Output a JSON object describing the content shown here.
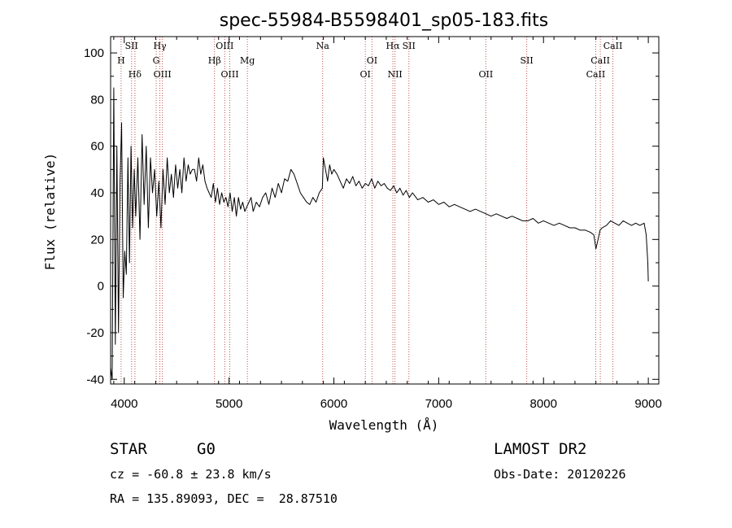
{
  "chart_data": {
    "type": "line",
    "title": "spec-55984-B5598401_sp05-183.fits",
    "xlabel": "Wavelength (Å)",
    "ylabel": "Flux (relative)",
    "xlim": [
      3870,
      9100
    ],
    "ylim": [
      -42,
      107
    ],
    "xticks": [
      4000,
      5000,
      6000,
      7000,
      8000,
      9000
    ],
    "yticks": [
      -40,
      -20,
      0,
      20,
      40,
      60,
      80,
      100
    ],
    "grid": false,
    "line_color": "#000000",
    "marker_color": "#c0504d",
    "spectrum": {
      "x": [
        3870,
        3885,
        3900,
        3915,
        3930,
        3945,
        3960,
        3975,
        3990,
        4005,
        4020,
        4035,
        4050,
        4065,
        4080,
        4095,
        4110,
        4130,
        4150,
        4170,
        4190,
        4210,
        4230,
        4250,
        4270,
        4290,
        4310,
        4330,
        4350,
        4370,
        4390,
        4410,
        4430,
        4450,
        4470,
        4490,
        4510,
        4530,
        4550,
        4570,
        4590,
        4610,
        4630,
        4650,
        4670,
        4690,
        4710,
        4730,
        4750,
        4770,
        4790,
        4810,
        4830,
        4850,
        4870,
        4890,
        4910,
        4930,
        4950,
        4970,
        4990,
        5010,
        5030,
        5050,
        5070,
        5090,
        5110,
        5130,
        5150,
        5170,
        5190,
        5210,
        5230,
        5260,
        5290,
        5320,
        5350,
        5380,
        5410,
        5440,
        5470,
        5500,
        5530,
        5560,
        5590,
        5620,
        5650,
        5680,
        5710,
        5740,
        5770,
        5800,
        5830,
        5860,
        5890,
        5900,
        5920,
        5940,
        5960,
        5980,
        6000,
        6030,
        6060,
        6090,
        6120,
        6150,
        6180,
        6210,
        6240,
        6270,
        6300,
        6330,
        6360,
        6390,
        6420,
        6450,
        6480,
        6510,
        6540,
        6570,
        6600,
        6630,
        6660,
        6690,
        6720,
        6750,
        6800,
        6850,
        6900,
        6950,
        7000,
        7050,
        7100,
        7150,
        7200,
        7250,
        7300,
        7350,
        7400,
        7450,
        7500,
        7550,
        7600,
        7650,
        7700,
        7750,
        7800,
        7850,
        7900,
        7950,
        8000,
        8050,
        8100,
        8150,
        8200,
        8250,
        8300,
        8350,
        8400,
        8450,
        8480,
        8500,
        8520,
        8540,
        8560,
        8600,
        8640,
        8680,
        8720,
        8760,
        8800,
        8840,
        8880,
        8920,
        8960,
        8980,
        8995,
        9000
      ],
      "y": [
        -35,
        -40,
        85,
        -25,
        60,
        -20,
        45,
        70,
        -5,
        15,
        5,
        55,
        10,
        60,
        25,
        50,
        30,
        55,
        20,
        65,
        35,
        60,
        25,
        55,
        40,
        50,
        30,
        45,
        25,
        50,
        35,
        55,
        40,
        48,
        38,
        52,
        42,
        50,
        40,
        55,
        45,
        52,
        48,
        50,
        50,
        45,
        55,
        48,
        52,
        45,
        42,
        40,
        38,
        44,
        36,
        42,
        35,
        40,
        36,
        38,
        34,
        40,
        32,
        38,
        30,
        38,
        33,
        36,
        32,
        34,
        36,
        38,
        32,
        36,
        34,
        38,
        40,
        35,
        42,
        38,
        44,
        40,
        46,
        45,
        50,
        48,
        44,
        40,
        38,
        36,
        35,
        38,
        36,
        40,
        42,
        55,
        50,
        45,
        52,
        48,
        50,
        48,
        45,
        42,
        46,
        44,
        47,
        43,
        45,
        42,
        44,
        43,
        46,
        42,
        45,
        43,
        44,
        42,
        41,
        43,
        40,
        42,
        39,
        41,
        38,
        40,
        37,
        38,
        36,
        37,
        35,
        36,
        34,
        35,
        34,
        33,
        32,
        33,
        32,
        31,
        30,
        31,
        30,
        29,
        30,
        29,
        28,
        28,
        29,
        27,
        28,
        27,
        26,
        27,
        26,
        25,
        25,
        24,
        24,
        23,
        22,
        16,
        20,
        24,
        25,
        26,
        28,
        27,
        26,
        28,
        27,
        26,
        27,
        26,
        27,
        22,
        10,
        2
      ]
    },
    "lines": [
      {
        "label": "H",
        "x": 3970,
        "row": 2
      },
      {
        "label": "SII",
        "x": 4070,
        "row": 1
      },
      {
        "label": "Hδ",
        "x": 4102,
        "row": 3
      },
      {
        "label": "Hγ",
        "x": 4340,
        "row": 1
      },
      {
        "label": "G",
        "x": 4305,
        "row": 2
      },
      {
        "label": "OIII",
        "x": 4364,
        "row": 3
      },
      {
        "label": "OIII",
        "x": 4959,
        "row": 1
      },
      {
        "label": "Hβ",
        "x": 4861,
        "row": 2
      },
      {
        "label": "OIII",
        "x": 5007,
        "row": 3
      },
      {
        "label": "Mg",
        "x": 5175,
        "row": 2
      },
      {
        "label": "Na",
        "x": 5893,
        "row": 1
      },
      {
        "label": "OI",
        "x": 6364,
        "row": 2
      },
      {
        "label": "OI",
        "x": 6300,
        "row": 3
      },
      {
        "label": "Hα",
        "x": 6563,
        "row": 1
      },
      {
        "label": "SII",
        "x": 6716,
        "row": 1
      },
      {
        "label": "NII",
        "x": 6583,
        "row": 3
      },
      {
        "label": "OII",
        "x": 7450,
        "row": 3
      },
      {
        "label": "SII",
        "x": 7840,
        "row": 2
      },
      {
        "label": "CaII",
        "x": 8662,
        "row": 1
      },
      {
        "label": "CaII",
        "x": 8542,
        "row": 2
      },
      {
        "label": "CaII",
        "x": 8498,
        "row": 3
      }
    ]
  },
  "info": {
    "class_label": "STAR",
    "subclass": "G0",
    "survey": "LAMOST DR2",
    "cz": "cz = -60.8 ± 23.8 km/s",
    "obs_date": "Obs-Date: 20120226",
    "coords": "RA = 135.89093, DEC =  28.87510"
  }
}
